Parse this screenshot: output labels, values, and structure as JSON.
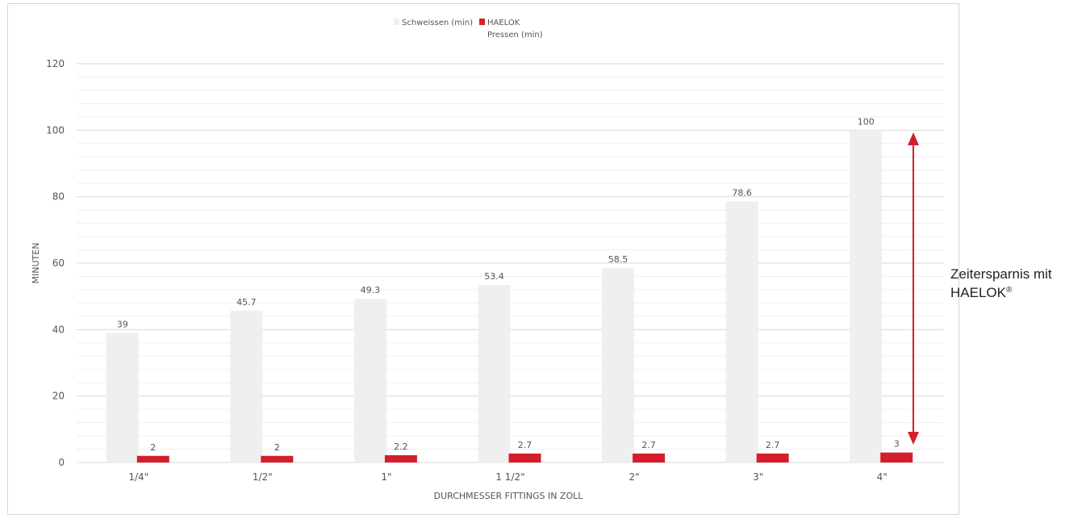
{
  "chart_data": {
    "type": "bar",
    "categories": [
      "1/4\"",
      "1/2\"",
      "1\"",
      "1 1/2\"",
      "2\"",
      "3\"",
      "4\""
    ],
    "series": [
      {
        "name": "Schweissen (min)",
        "values": [
          39,
          45.7,
          49.3,
          53.4,
          58.5,
          78.6,
          100
        ],
        "color": "#efefef"
      },
      {
        "name": "HAELOK Pressen (min)",
        "values": [
          2,
          2,
          2.2,
          2.7,
          2.7,
          2.7,
          3
        ],
        "color": "#d41e2c"
      }
    ],
    "data_labels": [
      [
        "39",
        "45.7",
        "49.3",
        "53.4",
        "58.5",
        "78.6",
        "100"
      ],
      [
        "2",
        "2",
        "2.2",
        "2.7",
        "2.7",
        "2.7",
        "3"
      ]
    ],
    "legend": {
      "position": "top",
      "items": [
        {
          "lines": [
            "Schweissen (min)"
          ],
          "color": "#efefef"
        },
        {
          "lines": [
            "HAELOK",
            "Pressen (min)"
          ],
          "color": "#d41e2c"
        }
      ]
    },
    "xlabel": "DURCHMESSER FITTINGS IN ZOLL",
    "ylabel": "MINUTEN",
    "ylim": [
      0,
      120
    ],
    "yticks": [
      "0",
      "20",
      "40",
      "60",
      "80",
      "100",
      "120"
    ],
    "grid": true
  },
  "annotation": {
    "line1": "Zeitersparnis mit",
    "line2": "HAELOK",
    "mark": "®",
    "arrow_color": "#d41e2c"
  }
}
